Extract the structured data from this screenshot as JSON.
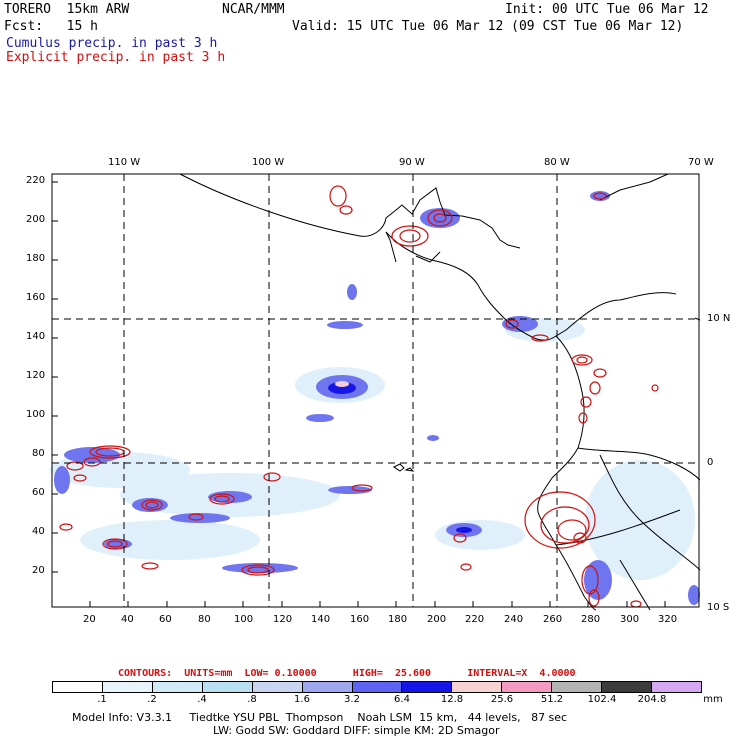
{
  "header": {
    "model": "TORERO  15km ARW",
    "org": "NCAR/MMM",
    "init": "Init: 00 UTC Tue 06 Mar 12",
    "fcst": "Fcst:   15 h",
    "valid": "Valid: 15 UTC Tue 06 Mar 12 (09 CST Tue 06 Mar 12)",
    "cumulus": "Cumulus precip. in past 3 h",
    "explicit": "Explicit precip. in past 3 h"
  },
  "map": {
    "lon_labels": [
      "110 W",
      "100 W",
      "90 W",
      "80 W",
      "70 W"
    ],
    "lat_labels": [
      "10 N",
      "0",
      "10 S"
    ],
    "y_ticks": [
      "220",
      "200",
      "180",
      "160",
      "140",
      "120",
      "100",
      "80",
      "60",
      "40",
      "20"
    ],
    "x_ticks": [
      "20",
      "40",
      "60",
      "80",
      "100",
      "120",
      "140",
      "160",
      "180",
      "200",
      "220",
      "240",
      "260",
      "280",
      "300",
      "320"
    ]
  },
  "contours_line": "CONTOURS:  UNITS=mm  LOW= 0.10000      HIGH=  25.600      INTERVAL=X  4.0000",
  "colorbar": {
    "labels": [
      ".1",
      ".2",
      ".4",
      ".8",
      "1.6",
      "3.2",
      "6.4",
      "12.8",
      "25.6",
      "51.2",
      "102.4",
      "204.8"
    ],
    "unit": "mm",
    "colors": [
      "#ffffff",
      "#e8f4fb",
      "#d2ecf7",
      "#b8e0f2",
      "#c9d6f2",
      "#9fa8ef",
      "#5c62f2",
      "#1515e6",
      "#f7d2d2",
      "#f29ac2",
      "#b3b3b3",
      "#3c3c3c",
      "#d6a8f2"
    ]
  },
  "footer": {
    "line1": "Model Info: V3.3.1     Tiedtke YSU PBL  Thompson    Noah LSM  15 km,   44 levels,   87 sec",
    "line2": "LW: Godd SW: Goddard DIFF: simple KM: 2D Smagor"
  }
}
